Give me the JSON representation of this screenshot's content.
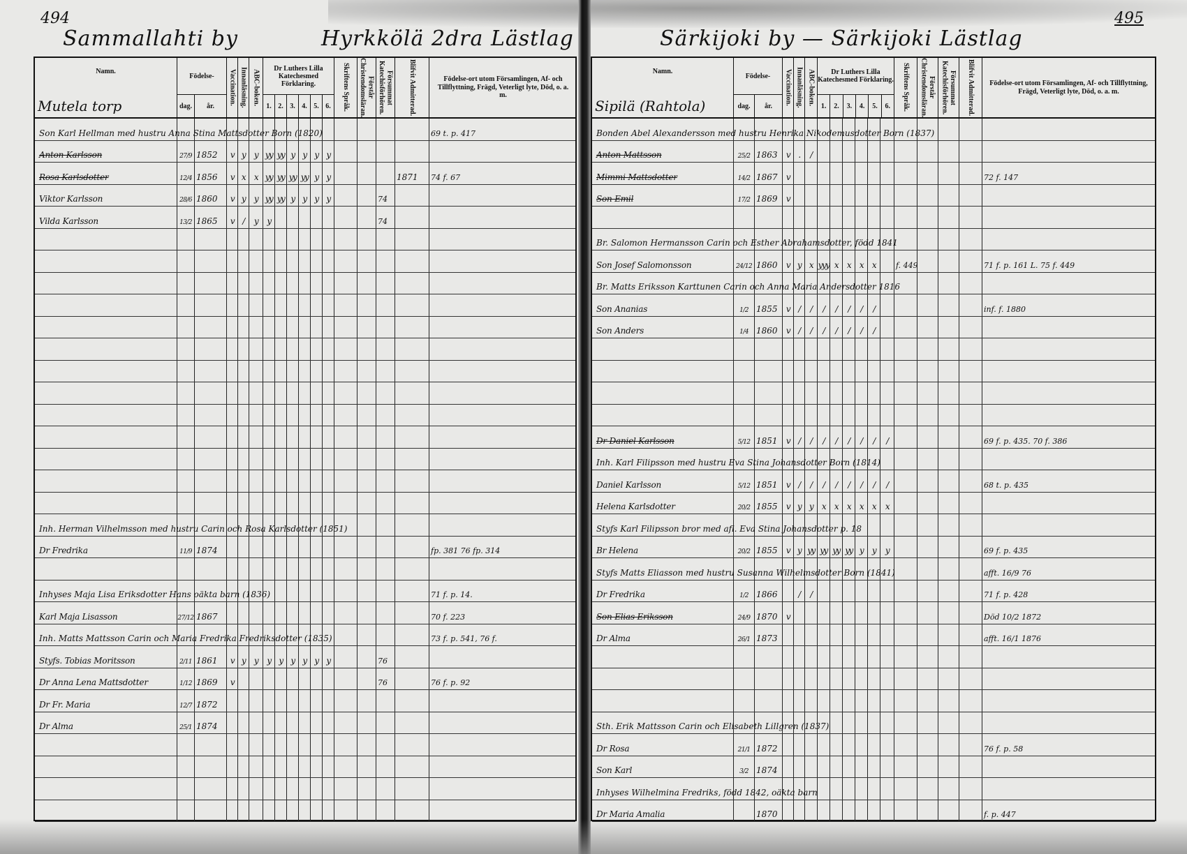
{
  "left": {
    "page_number": "494",
    "village": "Sammallahti by",
    "district": "Hyrkkölä 2dra Lästlag",
    "farm": "Mutela torp",
    "rows": [
      {
        "line": "Son Karl Hellman med hustru Anna Stina Mattsdotter Born (1820)",
        "notes": "69 t. p. 417"
      },
      {
        "name": "Anton Karlsson",
        "struck": true,
        "dag": "27/9",
        "ar": "1852",
        "marks": [
          "v",
          "y",
          "y",
          "yy",
          "yy",
          "y",
          "y",
          "y",
          "y"
        ]
      },
      {
        "name": "Rosa Karlsdotter",
        "struck": true,
        "dag": "12/4",
        "ar": "1856",
        "marks": [
          "v",
          "x",
          "x",
          "yy",
          "yy",
          "yy",
          "yy",
          "y",
          "y"
        ],
        "blifvit": "1871",
        "notes": "74 f. 67"
      },
      {
        "name": "Viktor Karlsson",
        "dag": "28/6",
        "ar": "1860",
        "marks": [
          "v",
          "y",
          "y",
          "yy",
          "yy",
          "y",
          "y",
          "y",
          "y"
        ],
        "forsumm": "74"
      },
      {
        "name": "Vilda Karlsson",
        "dag": "13/2",
        "ar": "1865",
        "marks": [
          "v",
          "/",
          "y",
          "y"
        ],
        "forsumm": "74"
      },
      {},
      {},
      {},
      {},
      {},
      {},
      {},
      {},
      {},
      {},
      {},
      {},
      {},
      {
        "line": "Inh. Herman Vilhelmsson med hustru Carin och Rosa Karlsdotter (1851)"
      },
      {
        "name": "Dr Fredrika",
        "dag": "11/9",
        "ar": "1874",
        "notes": "fp. 381 76 fp. 314"
      },
      {},
      {
        "line": "Inhyses Maja Lisa Eriksdotter Hans oäkta barn (1836)",
        "notes": "71 f. p. 14."
      },
      {
        "name": "Karl Maja Lisasson",
        "dag": "27/12",
        "ar": "1867",
        "notes": "70 f. 223"
      },
      {
        "line": "Inh. Matts Mattsson Carin och Maria Fredrika Fredriksdotter (1835)",
        "notes": "73 f. p. 541, 76 f."
      },
      {
        "name": "Styfs. Tobias Moritsson",
        "dag": "2/11",
        "ar": "1861",
        "marks": [
          "v",
          "y",
          "y",
          "y",
          "y",
          "y",
          "y",
          "y",
          "y"
        ],
        "forsumm": "76"
      },
      {
        "name": "Dr Anna Lena Mattsdotter",
        "dag": "1/12",
        "ar": "1869",
        "marks": [
          "v"
        ],
        "forsumm": "76",
        "notes": "76 f. p. 92"
      },
      {
        "name": "Dr Fr. Maria",
        "dag": "12/7",
        "ar": "1872"
      },
      {
        "name": "Dr Alma",
        "dag": "25/1",
        "ar": "1874"
      },
      {},
      {},
      {},
      {}
    ]
  },
  "right": {
    "page_number": "495",
    "village": "Särkijoki by — Särkijoki Lästlag",
    "farm": "Sipilä (Rahtola)",
    "rows": [
      {
        "line": "Bonden Abel Alexandersson med hustru Henrika Nikodemusdotter Born (1837)"
      },
      {
        "name": "Anton Mattsson",
        "struck": true,
        "dag": "25/2",
        "ar": "1863",
        "marks": [
          "v",
          ".",
          "/"
        ]
      },
      {
        "name": "Mimmi Mattsdotter",
        "struck": true,
        "dag": "14/2",
        "ar": "1867",
        "marks": [
          "v"
        ],
        "notes": "72 f. 147"
      },
      {
        "name": "Son Emil",
        "struck": true,
        "dag": "17/2",
        "ar": "1869",
        "marks": [
          "v"
        ]
      },
      {},
      {
        "line": "Br. Salomon Hermansson Carin och Esther Abrahamsdotter, född 1841"
      },
      {
        "name": "Son Josef Salomonsson",
        "dag": "24/12",
        "ar": "1860",
        "marks": [
          "v",
          "y",
          "x",
          "yyy",
          "x",
          "x",
          "x",
          "x"
        ],
        "skrift": "f. 449",
        "notes": "71 f. p. 161 L. 75 f. 449"
      },
      {
        "line": "Br. Matts Eriksson Karttunen Carin och Anna Maria Andersdotter 1816"
      },
      {
        "name": "Son Ananias",
        "dag": "1/2",
        "ar": "1855",
        "marks": [
          "v",
          "/",
          "/",
          "/",
          "/",
          "/",
          "/",
          "/"
        ],
        "notes": "inf. f. 1880"
      },
      {
        "name": "Son Anders",
        "dag": "1/4",
        "ar": "1860",
        "marks": [
          "v",
          "/",
          "/",
          "/",
          "/",
          "/",
          "/",
          "/"
        ]
      },
      {},
      {},
      {},
      {},
      {
        "name": "Dr Daniel Karlsson",
        "struck": true,
        "dag": "5/12",
        "ar": "1851",
        "marks": [
          "v",
          "/",
          "/",
          "/",
          "/",
          "/",
          "/",
          "/",
          "/"
        ],
        "notes": "69 f. p. 435. 70 f. 386"
      },
      {
        "line": "Inh. Karl Filipsson med hustru Eva Stina Johansdotter Born (1814)"
      },
      {
        "name": "Daniel Karlsson",
        "dag": "5/12",
        "ar": "1851",
        "marks": [
          "v",
          "/",
          "/",
          "/",
          "/",
          "/",
          "/",
          "/",
          "/"
        ],
        "notes": "68 t. p. 435"
      },
      {
        "name": "Helena Karlsdotter",
        "dag": "20/2",
        "ar": "1855",
        "marks": [
          "v",
          "y",
          "y",
          "x",
          "x",
          "x",
          "x",
          "x",
          "x"
        ]
      },
      {
        "line": "Styfs Karl Filipsson bror med afl. Eva Stina Johansdotter p. 18"
      },
      {
        "name": "Br Helena",
        "dag": "20/2",
        "ar": "1855",
        "marks": [
          "v",
          "y",
          "yy",
          "yy",
          "yy",
          "yy",
          "y",
          "y",
          "y"
        ],
        "notes": "69 f. p. 435"
      },
      {
        "line": "Styfs Matts Eliasson med hustru Susanna Wilhelmsdotter Born (1841)",
        "notes": "afft. 16/9 76"
      },
      {
        "name": "Dr Fredrika",
        "dag": "1/2",
        "ar": "1866",
        "marks": [
          "",
          "/",
          "/"
        ],
        "notes": "71 f. p. 428"
      },
      {
        "name": "Son Elias Eriksson",
        "struck": true,
        "dag": "24/9",
        "ar": "1870",
        "marks": [
          "v"
        ],
        "notes": "Död 10/2 1872"
      },
      {
        "name": "Dr Alma",
        "dag": "26/1",
        "ar": "1873",
        "notes": "afft. 16/1 1876"
      },
      {},
      {},
      {},
      {
        "line": "Sth. Erik Mattsson Carin och Elisabeth Lillgren (1837)"
      },
      {
        "name": "Dr Rosa",
        "dag": "21/1",
        "ar": "1872",
        "notes": "76 f. p. 58"
      },
      {
        "name": "Son Karl",
        "dag": "3/2",
        "ar": "1874"
      },
      {
        "line": "Inhyses Wilhelmina Fredriks, född 1842, oäkta barn"
      },
      {
        "name": "Dr Maria Amalia",
        "ar": "1870",
        "notes": "f. p. 447"
      }
    ]
  },
  "header": {
    "namn": "Namn.",
    "fodelse": "Födelse-",
    "dag": "dag.",
    "ar": "år.",
    "vacc": "Vaccination.",
    "innan": "Innanläsning.",
    "abc": "ABC-boken.",
    "katekes": "Dr Luthers Lilla Katechesmed Förklaring.",
    "kat_nums": [
      "1.",
      "2.",
      "3.",
      "4.",
      "5.",
      "6."
    ],
    "skrift": "Skriftens Språk.",
    "forstar": "Förstår Christendomsläran.",
    "forsumm": "Försummat Katechisförhören.",
    "blifvit": "Blifvit Admitterad.",
    "ort": "Födelse-ort utom Församlingen, Af- och Tillflyttning, Frägd, Veterligt lyte, Död, o. a. m."
  }
}
